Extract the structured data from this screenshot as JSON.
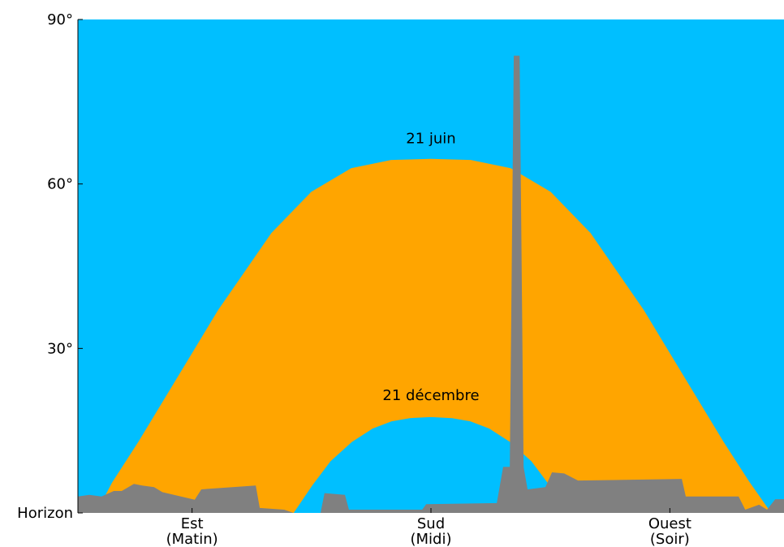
{
  "chart_data": {
    "type": "area",
    "background": "#00bfff",
    "fill_color": "#ffa500",
    "xlim": [
      47,
      313
    ],
    "ylim": [
      0,
      90
    ],
    "xticks": [
      {
        "value": 90,
        "label": "Est\n(Matin)"
      },
      {
        "value": 180,
        "label": "Sud\n(Midi)"
      },
      {
        "value": 270,
        "label": "Ouest\n(Soir)"
      }
    ],
    "yticks": [
      {
        "value": 0,
        "label": "Horizon"
      },
      {
        "value": 30,
        "label": "30°"
      },
      {
        "value": 60,
        "label": "60°"
      },
      {
        "value": 90,
        "label": "90°"
      }
    ],
    "summer": {
      "label": "21 juin",
      "x": [
        54,
        60,
        70,
        80,
        90,
        100,
        110,
        120,
        135,
        150,
        165,
        180,
        195,
        210,
        225,
        240,
        250,
        260,
        270,
        280,
        290,
        300,
        308
      ],
      "y": [
        0,
        5.5,
        13,
        21,
        29,
        37,
        44,
        51,
        58.5,
        62.8,
        64.3,
        64.5,
        64.3,
        62.8,
        58.5,
        51,
        44,
        37,
        29,
        21,
        13,
        5.5,
        0
      ]
    },
    "winter": {
      "label": "21 décembre",
      "x": [
        128,
        135,
        142,
        150,
        158,
        165,
        172,
        180,
        188,
        195,
        202,
        210,
        218,
        225,
        235
      ],
      "y": [
        0,
        5,
        9.5,
        13,
        15.5,
        16.8,
        17.4,
        17.6,
        17.4,
        16.8,
        15.5,
        13,
        9.5,
        5,
        0
      ]
    },
    "skyline": {
      "color": "#808080",
      "x": [
        47,
        51.3,
        55.9,
        60.5,
        63.5,
        68.1,
        71.2,
        75.7,
        78.8,
        91,
        93.5,
        114,
        115.5,
        124.7,
        128.3,
        138.4,
        139.9,
        147.6,
        149.1,
        176.7,
        178.2,
        204.8,
        207.2,
        209.7,
        211.2,
        213.4,
        214.9,
        216.4,
        223.1,
        225.6,
        230.2,
        235.4,
        274.5,
        276,
        295.9,
        298.4,
        303.6,
        306.6,
        309.7,
        313
      ],
      "y": [
        3.0,
        3.3,
        3.0,
        4.0,
        4.0,
        5.3,
        5.0,
        4.7,
        3.8,
        2.4,
        4.3,
        5.0,
        0.9,
        0.6,
        0,
        0,
        3.6,
        3.3,
        0.6,
        0.6,
        1.6,
        1.8,
        8.4,
        8.4,
        83.4,
        83.4,
        8.4,
        4.3,
        4.7,
        7.4,
        7.2,
        5.9,
        6.2,
        3.0,
        3.0,
        0.6,
        1.5,
        0.6,
        2.5,
        2.5
      ]
    }
  }
}
